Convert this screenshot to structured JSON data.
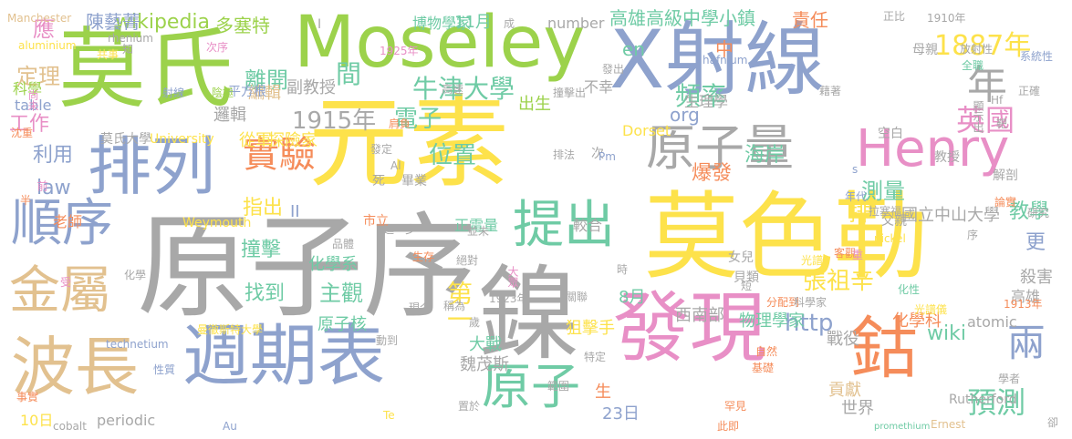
{
  "palette": {
    "green": "#9cd24b",
    "yellow": "#fde24b",
    "blue": "#8ea2cd",
    "gray": "#a8a8a8",
    "pink": "#e88fc6",
    "orange": "#f58c5a",
    "teal": "#6fcba5",
    "tan": "#e2c18f"
  },
  "words": [
    {
      "t": "莫氏",
      "c": "green"
    },
    {
      "t": "元素",
      "c": "yellow"
    },
    {
      "t": "X射線",
      "c": "blue"
    },
    {
      "t": "莫色勒",
      "c": "yellow"
    },
    {
      "t": "原子序",
      "c": "gray"
    },
    {
      "t": "Moseley",
      "c": "green"
    },
    {
      "t": "排列",
      "c": "blue"
    },
    {
      "t": "週期表",
      "c": "blue"
    },
    {
      "t": "發現",
      "c": "pink"
    },
    {
      "t": "鎳",
      "c": "gray"
    },
    {
      "t": "波長",
      "c": "tan"
    },
    {
      "t": "鈷",
      "c": "orange"
    },
    {
      "t": "原子量",
      "c": "gray"
    },
    {
      "t": "Henry",
      "c": "pink"
    },
    {
      "t": "金屬",
      "c": "tan"
    },
    {
      "t": "順序",
      "c": "blue"
    },
    {
      "t": "提出",
      "c": "teal"
    },
    {
      "t": "原子",
      "c": "teal"
    },
    {
      "t": "實驗",
      "c": "orange"
    },
    {
      "t": "1887年",
      "c": "yellow"
    },
    {
      "t": "年",
      "c": "gray"
    },
    {
      "t": "英國",
      "c": "pink"
    },
    {
      "t": "預測",
      "c": "teal"
    },
    {
      "t": "兩",
      "c": "blue"
    },
    {
      "t": "牛津大學",
      "c": "teal"
    },
    {
      "t": "頻率",
      "c": "teal"
    },
    {
      "t": "電子",
      "c": "teal"
    },
    {
      "t": "位置",
      "c": "teal"
    },
    {
      "t": "測量",
      "c": "teal"
    },
    {
      "t": "1915年",
      "c": "gray"
    },
    {
      "t": "離開",
      "c": "teal"
    },
    {
      "t": "間",
      "c": "teal"
    },
    {
      "t": "應",
      "c": "pink"
    },
    {
      "t": "定理",
      "c": "tan"
    },
    {
      "t": "工作",
      "c": "pink"
    },
    {
      "t": "利用",
      "c": "blue"
    },
    {
      "t": "law",
      "c": "blue"
    },
    {
      "t": "指出",
      "c": "yellow"
    },
    {
      "t": "撞擊",
      "c": "teal"
    },
    {
      "t": "找到",
      "c": "teal"
    },
    {
      "t": "主觀",
      "c": "teal"
    },
    {
      "t": "第一",
      "c": "yellow"
    },
    {
      "t": "http",
      "c": "blue"
    },
    {
      "t": "wiki",
      "c": "teal"
    },
    {
      "t": "排",
      "c": "yellow"
    },
    {
      "t": "爆發",
      "c": "orange"
    },
    {
      "t": "海岸",
      "c": "teal"
    },
    {
      "t": "教學",
      "c": "teal"
    },
    {
      "t": "更",
      "c": "blue"
    },
    {
      "t": "張祖辛",
      "c": "yellow"
    },
    {
      "t": "高雄高級中學小鎮",
      "c": "teal"
    },
    {
      "t": "wikipedia",
      "c": "green"
    },
    {
      "t": "多塞特",
      "c": "green"
    },
    {
      "t": "陳藝菁",
      "c": "blue"
    },
    {
      "t": "en",
      "c": "teal"
    },
    {
      "t": "中",
      "c": "orange"
    },
    {
      "t": "org",
      "c": "blue"
    },
    {
      "t": "責任",
      "c": "orange"
    },
    {
      "t": "副教授",
      "c": "gray"
    },
    {
      "t": "編輯",
      "c": "tan"
    },
    {
      "t": "邏輯",
      "c": "gray"
    },
    {
      "t": "從軍",
      "c": "yellow"
    },
    {
      "t": "探險家",
      "c": "yellow"
    },
    {
      "t": "國立中山大學",
      "c": "gray"
    },
    {
      "t": "化學系",
      "c": "teal"
    },
    {
      "t": "物理學家",
      "c": "teal"
    },
    {
      "t": "西南部",
      "c": "gray"
    },
    {
      "t": "化學科",
      "c": "orange"
    },
    {
      "t": "殺害",
      "c": "gray"
    },
    {
      "t": "高雄",
      "c": "gray"
    },
    {
      "t": "戰役",
      "c": "gray"
    },
    {
      "t": "貢獻",
      "c": "tan"
    },
    {
      "t": "世界",
      "c": "gray"
    },
    {
      "t": "魏茂斯",
      "c": "gray"
    },
    {
      "t": "大戰",
      "c": "teal"
    },
    {
      "t": "狙擊手",
      "c": "yellow"
    },
    {
      "t": "原子核",
      "c": "teal"
    },
    {
      "t": "8月",
      "c": "teal"
    },
    {
      "t": "23日",
      "c": "blue"
    },
    {
      "t": "生",
      "c": "orange"
    },
    {
      "t": "periodic",
      "c": "gray"
    },
    {
      "t": "10日",
      "c": "yellow"
    },
    {
      "t": "Weymouth",
      "c": "yellow"
    },
    {
      "t": "number",
      "c": "gray"
    },
    {
      "t": "11月",
      "c": "teal"
    },
    {
      "t": "博物學家",
      "c": "teal"
    },
    {
      "t": "出生",
      "c": "green"
    },
    {
      "t": "不幸",
      "c": "gray"
    },
    {
      "t": "生理學",
      "c": "gray"
    },
    {
      "t": "科學",
      "c": "green"
    },
    {
      "t": "table",
      "c": "blue"
    },
    {
      "t": "老師",
      "c": "orange"
    },
    {
      "t": "莫氏大學",
      "c": "gray"
    },
    {
      "t": "University",
      "c": "yellow"
    },
    {
      "t": "atomic",
      "c": "gray"
    },
    {
      "t": "Rutherford",
      "c": "gray"
    },
    {
      "t": "Dorset",
      "c": "yellow"
    },
    {
      "t": "平方根",
      "c": "blue"
    },
    {
      "t": "市立",
      "c": "orange"
    },
    {
      "t": "正電量",
      "c": "teal"
    },
    {
      "t": "較合",
      "c": "gray"
    },
    {
      "t": "父親",
      "c": "gray"
    },
    {
      "t": "解剖",
      "c": "gray"
    },
    {
      "t": "教授",
      "c": "gray"
    },
    {
      "t": "死",
      "c": "gray"
    },
    {
      "t": "畢業",
      "c": "gray"
    },
    {
      "t": "次",
      "c": "gray"
    },
    {
      "t": "女兒",
      "c": "gray"
    },
    {
      "t": "貝類",
      "c": "gray"
    },
    {
      "t": "Manchester",
      "c": "tan"
    },
    {
      "t": "1910年",
      "c": "gray"
    },
    {
      "t": "母親",
      "c": "gray"
    },
    {
      "t": "學者",
      "c": "gray"
    },
    {
      "t": "Ernest",
      "c": "tan"
    },
    {
      "t": "promethium",
      "c": "teal"
    },
    {
      "t": "cobalt",
      "c": "gray"
    },
    {
      "t": "Au",
      "c": "blue"
    },
    {
      "t": "Te",
      "c": "yellow"
    },
    {
      "t": "technetium",
      "c": "blue"
    },
    {
      "t": "曼徹斯特大學",
      "c": "yellow"
    },
    {
      "t": "事實",
      "c": "orange"
    },
    {
      "t": "性質",
      "c": "blue"
    },
    {
      "t": "光譜",
      "c": "yellow"
    },
    {
      "t": "客觀",
      "c": "orange"
    },
    {
      "t": "1913年",
      "c": "orange"
    },
    {
      "t": "nickel",
      "c": "yellow"
    },
    {
      "t": "hafnium",
      "c": "blue"
    },
    {
      "t": "aluminium",
      "c": "yellow"
    },
    {
      "t": "rhenium",
      "c": "gray"
    },
    {
      "t": "研究",
      "c": "gray"
    },
    {
      "t": "拉塞福",
      "c": "gray"
    },
    {
      "t": "分配到",
      "c": "orange"
    },
    {
      "t": "光譜儀",
      "c": "yellow"
    },
    {
      "t": "自然",
      "c": "orange"
    },
    {
      "t": "罕見",
      "c": "orange"
    },
    {
      "t": "此即",
      "c": "orange"
    },
    {
      "t": "基礎",
      "c": "orange"
    },
    {
      "t": "範圍",
      "c": "gray"
    },
    {
      "t": "置於",
      "c": "gray"
    },
    {
      "t": "動到",
      "c": "gray"
    },
    {
      "t": "現今",
      "c": "gray"
    },
    {
      "t": "關聯",
      "c": "gray"
    },
    {
      "t": "特定",
      "c": "gray"
    },
    {
      "t": "1923年",
      "c": "gray"
    },
    {
      "t": "品體",
      "c": "gray"
    },
    {
      "t": "進一步",
      "c": "gray"
    },
    {
      "t": "稱為",
      "c": "gray"
    },
    {
      "t": "絕對",
      "c": "gray"
    },
    {
      "t": "大眾",
      "c": "pink"
    },
    {
      "t": "時",
      "c": "gray"
    },
    {
      "t": "歲",
      "c": "gray"
    },
    {
      "t": "短",
      "c": "gray"
    },
    {
      "t": "化學",
      "c": "gray"
    },
    {
      "t": "受",
      "c": "pink"
    },
    {
      "t": "半",
      "c": "orange"
    },
    {
      "t": "前",
      "c": "pink"
    },
    {
      "t": "沈重",
      "c": "orange"
    },
    {
      "t": "射線",
      "c": "blue"
    },
    {
      "t": "尚未",
      "c": "pink"
    },
    {
      "t": "知",
      "c": "gray"
    },
    {
      "t": "共事",
      "c": "yellow"
    },
    {
      "t": "次序",
      "c": "pink"
    },
    {
      "t": "陰極",
      "c": "green"
    },
    {
      "t": "肩負",
      "c": "orange"
    },
    {
      "t": "高速",
      "c": "gray"
    },
    {
      "t": "排法",
      "c": "gray"
    },
    {
      "t": "發出",
      "c": "gray"
    },
    {
      "t": "撞擊出",
      "c": "gray"
    },
    {
      "t": "1925年",
      "c": "pink"
    },
    {
      "t": "成",
      "c": "gray"
    },
    {
      "t": "正比",
      "c": "gray"
    },
    {
      "t": "放射性",
      "c": "gray"
    },
    {
      "t": "全職",
      "c": "teal"
    },
    {
      "t": "正確",
      "c": "gray"
    },
    {
      "t": "系統性",
      "c": "blue"
    },
    {
      "t": "靶",
      "c": "gray"
    },
    {
      "t": "Hf",
      "c": "gray"
    },
    {
      "t": "I",
      "c": "gray"
    },
    {
      "t": "II",
      "c": "blue"
    },
    {
      "t": "s",
      "c": "blue"
    },
    {
      "t": "年代",
      "c": "blue"
    },
    {
      "t": "論實",
      "c": "orange"
    },
    {
      "t": "並未",
      "c": "gray"
    },
    {
      "t": "生存",
      "c": "orange"
    },
    {
      "t": "Pm",
      "c": "blue"
    },
    {
      "t": "Al",
      "c": "gray"
    },
    {
      "t": "發定",
      "c": "gray"
    },
    {
      "t": "化性",
      "c": "teal"
    },
    {
      "t": "科學家",
      "c": "gray"
    },
    {
      "t": "藉著",
      "c": "gray"
    },
    {
      "t": "顯示出",
      "c": "gray"
    },
    {
      "t": "空白",
      "c": "gray"
    },
    {
      "t": "重",
      "c": "pink"
    },
    {
      "t": "序",
      "c": "gray"
    },
    {
      "t": "卻",
      "c": "gray"
    },
    {
      "t": "引",
      "c": "gray"
    },
    {
      "t": "末",
      "c": "pink"
    }
  ]
}
